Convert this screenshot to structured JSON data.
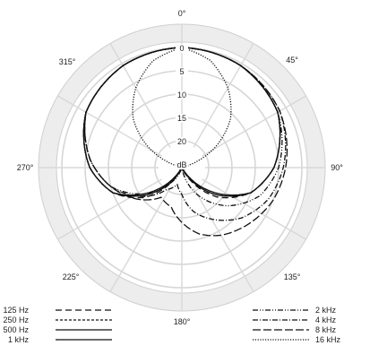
{
  "chart_data": {
    "type": "polar",
    "angle_ticks": [
      {
        "deg": 0,
        "label": "0°"
      },
      {
        "deg": 45,
        "label": "45°"
      },
      {
        "deg": 90,
        "label": "90°"
      },
      {
        "deg": 135,
        "label": "135°"
      },
      {
        "deg": 180,
        "label": "180°"
      },
      {
        "deg": 225,
        "label": "225°"
      },
      {
        "deg": 270,
        "label": "270°"
      },
      {
        "deg": 315,
        "label": "315°"
      }
    ],
    "radial_ticks": [
      "0",
      "5",
      "10",
      "15",
      "20",
      "dB"
    ],
    "radial_range_db": [
      0,
      30
    ],
    "grid": true,
    "legend": {
      "left": [
        "125 Hz",
        "250 Hz",
        "500 Hz",
        "1 kHz"
      ],
      "right": [
        "2 kHz",
        "4 kHz",
        "8 kHz",
        "16 kHz"
      ]
    },
    "series": [
      {
        "name": "125 Hz",
        "dash": "7,4",
        "points": [
          [
            0,
            0
          ],
          [
            30,
            0.5
          ],
          [
            60,
            2
          ],
          [
            90,
            6
          ],
          [
            110,
            10
          ],
          [
            130,
            16
          ],
          [
            150,
            24
          ],
          [
            165,
            28
          ],
          [
            180,
            30
          ],
          [
            195,
            28
          ],
          [
            210,
            24
          ],
          [
            230,
            16
          ],
          [
            250,
            10
          ],
          [
            270,
            6
          ],
          [
            300,
            2
          ],
          [
            330,
            0.5
          ],
          [
            360,
            0
          ]
        ]
      },
      {
        "name": "250 Hz",
        "dash": "3,2",
        "points": [
          [
            0,
            0
          ],
          [
            30,
            0.5
          ],
          [
            60,
            2
          ],
          [
            90,
            6
          ],
          [
            110,
            10
          ],
          [
            130,
            17
          ],
          [
            150,
            25
          ],
          [
            170,
            29
          ],
          [
            180,
            30
          ],
          [
            190,
            29
          ],
          [
            210,
            25
          ],
          [
            230,
            17
          ],
          [
            250,
            10
          ],
          [
            270,
            6
          ],
          [
            300,
            2
          ],
          [
            330,
            0.5
          ],
          [
            360,
            0
          ]
        ]
      },
      {
        "name": "500 Hz",
        "dash": "",
        "points": [
          [
            0,
            0
          ],
          [
            30,
            0.5
          ],
          [
            60,
            2
          ],
          [
            90,
            6
          ],
          [
            110,
            10
          ],
          [
            130,
            17
          ],
          [
            145,
            23
          ],
          [
            160,
            27
          ],
          [
            180,
            30
          ],
          [
            200,
            27
          ],
          [
            215,
            23
          ],
          [
            230,
            17
          ],
          [
            250,
            10
          ],
          [
            270,
            6
          ],
          [
            300,
            2
          ],
          [
            330,
            0.5
          ],
          [
            360,
            0
          ]
        ]
      },
      {
        "name": "1 kHz",
        "dash": "",
        "points": [
          [
            0,
            0
          ],
          [
            30,
            0.5
          ],
          [
            60,
            2
          ],
          [
            90,
            6
          ],
          [
            110,
            10
          ],
          [
            130,
            18
          ],
          [
            150,
            26
          ],
          [
            165,
            29
          ],
          [
            180,
            30
          ],
          [
            195,
            29
          ],
          [
            210,
            26
          ],
          [
            230,
            18
          ],
          [
            250,
            10
          ],
          [
            270,
            6
          ],
          [
            300,
            2
          ],
          [
            330,
            0.5
          ],
          [
            360,
            0
          ]
        ]
      },
      {
        "name": "2 kHz",
        "dash": "6,2,1,2,1,2",
        "points": [
          [
            0,
            0
          ],
          [
            30,
            0.5
          ],
          [
            60,
            2
          ],
          [
            90,
            5
          ],
          [
            110,
            8
          ],
          [
            130,
            13
          ],
          [
            150,
            19
          ],
          [
            165,
            24
          ],
          [
            180,
            28
          ],
          [
            195,
            26
          ],
          [
            215,
            22
          ],
          [
            235,
            16
          ],
          [
            255,
            10
          ],
          [
            275,
            6
          ],
          [
            300,
            2
          ],
          [
            330,
            0.5
          ],
          [
            360,
            0
          ]
        ]
      },
      {
        "name": "4 kHz",
        "dash": "6,2,1,2",
        "points": [
          [
            0,
            0
          ],
          [
            30,
            0.5
          ],
          [
            60,
            1.5
          ],
          [
            90,
            4
          ],
          [
            110,
            6
          ],
          [
            130,
            9
          ],
          [
            150,
            13
          ],
          [
            165,
            16
          ],
          [
            180,
            20
          ],
          [
            195,
            22
          ],
          [
            215,
            20
          ],
          [
            235,
            15
          ],
          [
            255,
            10
          ],
          [
            275,
            6
          ],
          [
            300,
            2
          ],
          [
            330,
            0.5
          ],
          [
            360,
            0
          ]
        ]
      },
      {
        "name": "8 kHz",
        "dash": "9,3",
        "points": [
          [
            0,
            0
          ],
          [
            30,
            0.5
          ],
          [
            60,
            1.5
          ],
          [
            90,
            3.5
          ],
          [
            110,
            5
          ],
          [
            130,
            7
          ],
          [
            150,
            9
          ],
          [
            165,
            11
          ],
          [
            180,
            14
          ],
          [
            195,
            17
          ],
          [
            215,
            18
          ],
          [
            235,
            14
          ],
          [
            255,
            10
          ],
          [
            275,
            6
          ],
          [
            300,
            2
          ],
          [
            330,
            0.5
          ],
          [
            360,
            0
          ]
        ]
      },
      {
        "name": "16 kHz",
        "dash": "1.2,1.6",
        "points": [
          [
            0,
            0
          ],
          [
            15,
            2
          ],
          [
            30,
            6
          ],
          [
            45,
            11
          ],
          [
            60,
            18
          ],
          [
            75,
            26
          ],
          [
            90,
            30
          ],
          [
            270,
            30
          ],
          [
            285,
            26
          ],
          [
            300,
            18
          ],
          [
            315,
            11
          ],
          [
            330,
            6
          ],
          [
            345,
            2
          ],
          [
            360,
            0
          ]
        ]
      }
    ]
  }
}
